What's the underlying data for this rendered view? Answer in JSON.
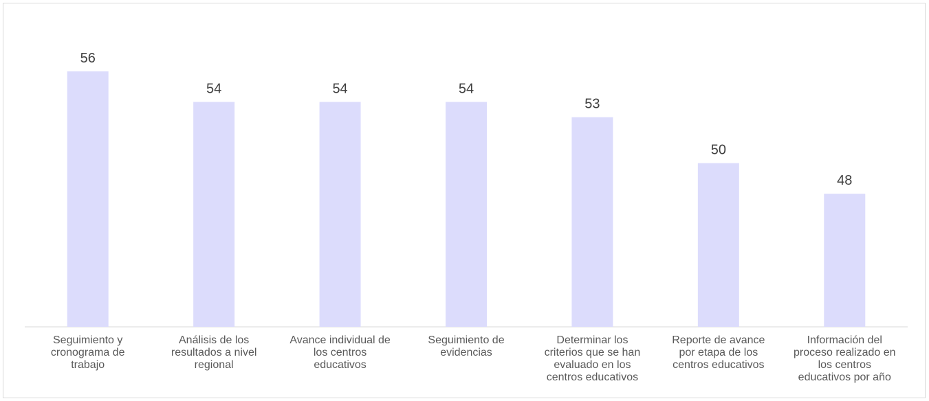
{
  "chart_data": {
    "type": "bar",
    "categories": [
      [
        "Seguimiento y",
        "cronograma de",
        "trabajo"
      ],
      [
        "Análisis de los",
        "resultados a nivel",
        "regional"
      ],
      [
        "Avance individual de",
        "los centros",
        "educativos"
      ],
      [
        "Seguimiento de",
        "evidencias"
      ],
      [
        "Determinar los",
        "criterios que se han",
        "evaluado en los",
        "centros educativos"
      ],
      [
        "Reporte de avance",
        "por etapa de los",
        "centros educativos"
      ],
      [
        "Información del",
        "proceso realizado en",
        "los centros",
        "educativos por año"
      ]
    ],
    "values": [
      56,
      54,
      54,
      54,
      53,
      50,
      48
    ],
    "data_labels": [
      "56",
      "54",
      "54",
      "54",
      "53",
      "50",
      "48"
    ],
    "title": "",
    "xlabel": "",
    "ylabel": "",
    "ylim": [
      39.3,
      56.8
    ],
    "grid": false,
    "legend": "none",
    "colors": {
      "bar": "#dcdcfc",
      "axis": "#d9d9d9",
      "label": "#404040",
      "category_text": "#595959"
    }
  }
}
